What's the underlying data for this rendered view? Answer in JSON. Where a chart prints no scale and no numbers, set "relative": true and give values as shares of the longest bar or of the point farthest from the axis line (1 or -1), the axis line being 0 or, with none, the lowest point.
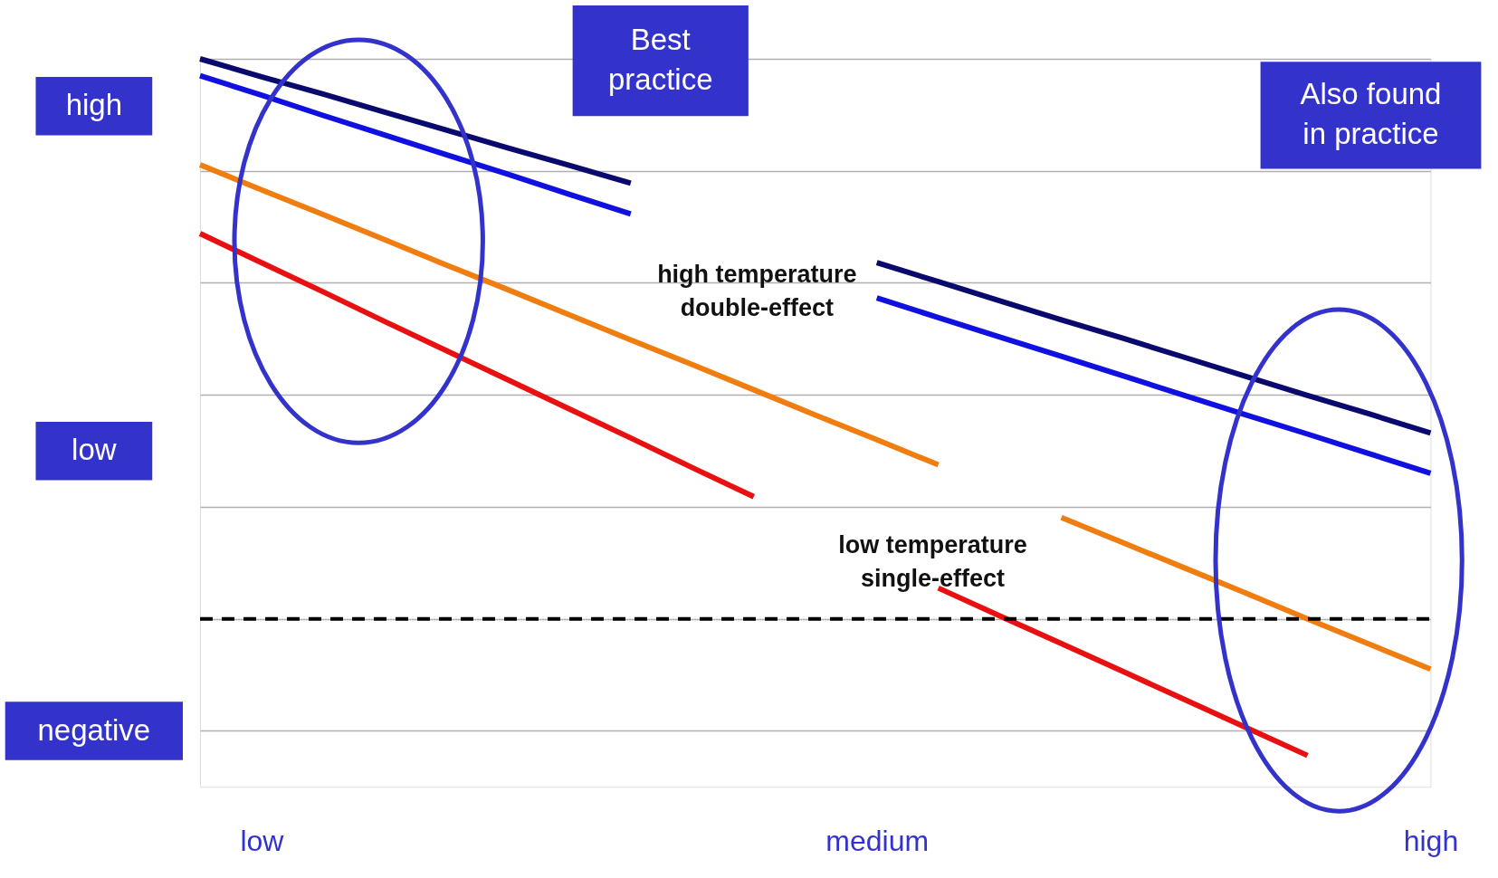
{
  "chart_data": {
    "type": "line",
    "relative": true,
    "categories": [
      null,
      "low",
      null,
      null,
      null,
      null,
      null,
      null,
      null,
      null,
      null,
      "medium",
      null,
      null,
      null,
      null,
      null,
      null,
      null,
      null,
      "high"
    ],
    "grid": "y",
    "tick_labels": "x",
    "line_style": "solid",
    "series": [
      {
        "color": "#0a0a6e",
        "values": [
          1.0,
          0.968,
          0.937,
          0.905,
          0.873,
          0.841,
          0.81,
          0.778,
          null,
          null,
          null,
          0.636,
          0.602,
          0.568,
          0.534,
          0.501,
          0.467,
          0.433,
          0.399,
          0.366,
          0.332
        ]
      },
      {
        "color": "#1010e0",
        "values": [
          0.97,
          0.935,
          0.899,
          0.864,
          0.829,
          0.794,
          0.758,
          0.723,
          null,
          null,
          null,
          0.573,
          0.538,
          0.503,
          0.469,
          0.434,
          0.399,
          0.364,
          0.33,
          0.295,
          0.26
        ]
      },
      {
        "color": "#f07d10",
        "values": [
          0.811,
          0.766,
          0.722,
          0.677,
          0.632,
          0.588,
          0.543,
          0.498,
          0.454,
          0.409,
          0.364,
          0.32,
          0.275,
          null,
          0.181,
          0.136,
          0.091,
          0.046,
          0.0,
          -0.045,
          -0.09
        ]
      },
      {
        "color": "#e81010",
        "values": [
          0.688,
          0.636,
          0.584,
          0.531,
          0.479,
          0.427,
          0.375,
          0.323,
          0.27,
          0.218,
          null,
          null,
          0.055,
          0.005,
          -0.044,
          -0.094,
          -0.144,
          -0.194,
          -0.244,
          null,
          null
        ]
      }
    ],
    "ref_lines": [
      {
        "axis": "y",
        "value": 0,
        "color": "#000000",
        "line_style": "dashed"
      }
    ],
    "annotations": [
      "high temperature\ndouble-effect",
      "low temperature\nsingle-effect",
      "Best\npractice",
      "Also found\nin practice",
      "high",
      "low",
      "negative"
    ]
  }
}
